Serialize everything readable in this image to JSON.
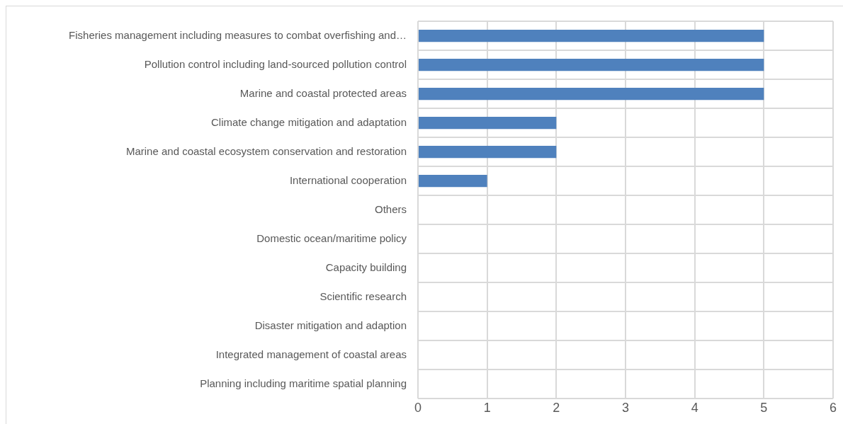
{
  "chart_data": {
    "type": "bar",
    "orientation": "horizontal",
    "categories": [
      "Fisheries management including measures to combat overfishing and…",
      "Pollution control including land-sourced pollution control",
      "Marine and coastal protected areas",
      "Climate change mitigation and adaptation",
      "Marine and coastal ecosystem conservation and restoration",
      "International cooperation",
      "Others",
      "Domestic ocean/maritime policy",
      "Capacity building",
      "Scientific research",
      "Disaster mitigation and adaption",
      "Integrated management of coastal areas",
      "Planning including maritime spatial planning"
    ],
    "values": [
      5,
      5,
      5,
      2,
      2,
      1,
      0,
      0,
      0,
      0,
      0,
      0,
      0
    ],
    "color": "#4f81bd",
    "xlim": [
      0,
      6
    ],
    "xticks": [
      0,
      1,
      2,
      3,
      4,
      5,
      6
    ],
    "grid": true,
    "legend": false
  }
}
